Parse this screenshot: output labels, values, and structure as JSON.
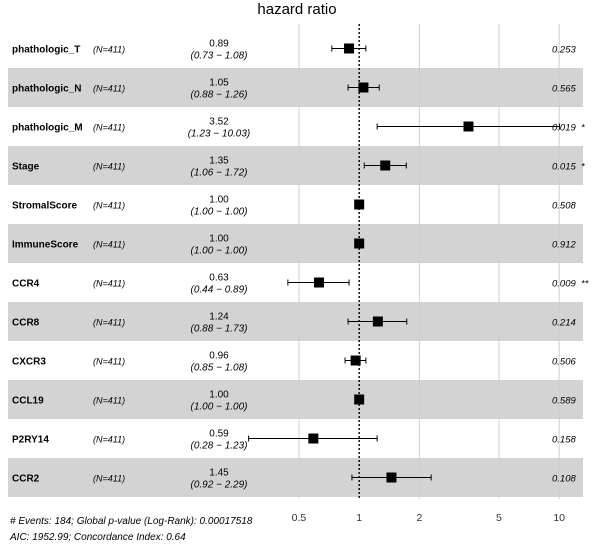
{
  "chart_data": {
    "type": "forest",
    "title": "hazard ratio",
    "x_scale": "log",
    "xlim": [
      0.35,
      12
    ],
    "x_ticks": [
      0.5,
      1,
      2,
      5,
      10
    ],
    "reference_line": 1,
    "colors": {
      "band": "#d3d3d3",
      "marker": "#000000",
      "grid": "#cfcfcf"
    },
    "rows": [
      {
        "variable": "phathologic_T",
        "n": "(N=411)",
        "hr": 0.89,
        "hr_label": "0.89",
        "ci_label": "(0.73 − 1.08)",
        "lower": 0.73,
        "upper": 1.08,
        "p": "0.253",
        "sig": ""
      },
      {
        "variable": "phathologic_N",
        "n": "(N=411)",
        "hr": 1.05,
        "hr_label": "1.05",
        "ci_label": "(0.88 − 1.26)",
        "lower": 0.88,
        "upper": 1.26,
        "p": "0.565",
        "sig": ""
      },
      {
        "variable": "phathologic_M",
        "n": "(N=411)",
        "hr": 3.52,
        "hr_label": "3.52",
        "ci_label": "(1.23 − 10.03)",
        "lower": 1.23,
        "upper": 10.03,
        "p": "0.019",
        "sig": "*"
      },
      {
        "variable": "Stage",
        "n": "(N=411)",
        "hr": 1.35,
        "hr_label": "1.35",
        "ci_label": "(1.06 − 1.72)",
        "lower": 1.06,
        "upper": 1.72,
        "p": "0.015",
        "sig": "*"
      },
      {
        "variable": "StromalScore",
        "n": "(N=411)",
        "hr": 1.0,
        "hr_label": "1.00",
        "ci_label": "(1.00 − 1.00)",
        "lower": 1.0,
        "upper": 1.0,
        "p": "0.508",
        "sig": ""
      },
      {
        "variable": "ImmuneScore",
        "n": "(N=411)",
        "hr": 1.0,
        "hr_label": "1.00",
        "ci_label": "(1.00 − 1.00)",
        "lower": 1.0,
        "upper": 1.0,
        "p": "0.912",
        "sig": ""
      },
      {
        "variable": "CCR4",
        "n": "(N=411)",
        "hr": 0.63,
        "hr_label": "0.63",
        "ci_label": "(0.44 − 0.89)",
        "lower": 0.44,
        "upper": 0.89,
        "p": "0.009",
        "sig": "**"
      },
      {
        "variable": "CCR8",
        "n": "(N=411)",
        "hr": 1.24,
        "hr_label": "1.24",
        "ci_label": "(0.88 − 1.73)",
        "lower": 0.88,
        "upper": 1.73,
        "p": "0.214",
        "sig": ""
      },
      {
        "variable": "CXCR3",
        "n": "(N=411)",
        "hr": 0.96,
        "hr_label": "0.96",
        "ci_label": "(0.85 − 1.08)",
        "lower": 0.85,
        "upper": 1.08,
        "p": "0.506",
        "sig": ""
      },
      {
        "variable": "CCL19",
        "n": "(N=411)",
        "hr": 1.0,
        "hr_label": "1.00",
        "ci_label": "(1.00 − 1.00)",
        "lower": 1.0,
        "upper": 1.0,
        "p": "0.589",
        "sig": ""
      },
      {
        "variable": "P2RY14",
        "n": "(N=411)",
        "hr": 0.59,
        "hr_label": "0.59",
        "ci_label": "(0.28 − 1.23)",
        "lower": 0.28,
        "upper": 1.23,
        "p": "0.158",
        "sig": ""
      },
      {
        "variable": "CCR2",
        "n": "(N=411)",
        "hr": 1.45,
        "hr_label": "1.45",
        "ci_label": "(0.92 − 2.29)",
        "lower": 0.92,
        "upper": 2.29,
        "p": "0.108",
        "sig": ""
      }
    ],
    "footer": [
      "# Events: 184; Global p-value (Log-Rank): 0.00017518",
      "AIC: 1952.99; Concordance Index: 0.64"
    ]
  }
}
